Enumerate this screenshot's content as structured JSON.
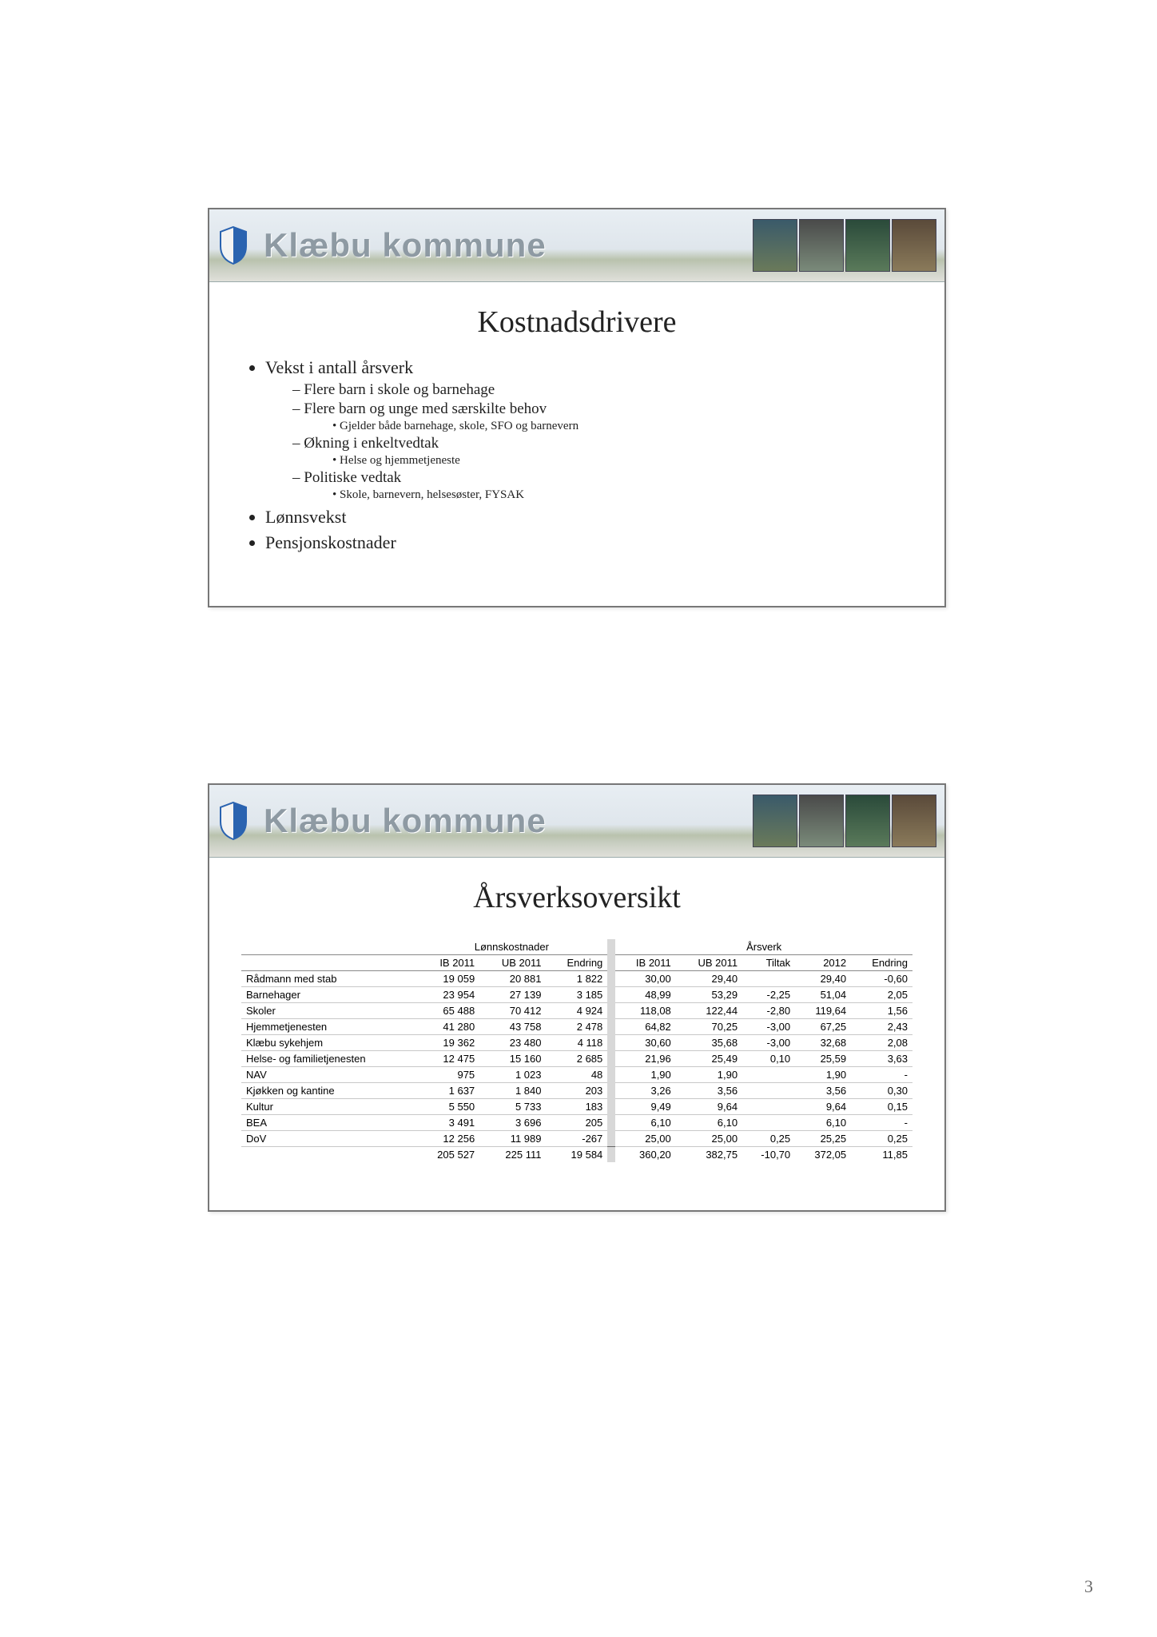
{
  "org_name": "Klæbu kommune",
  "page_number": "3",
  "colors": {
    "header_text": "#8e9aa3",
    "body_text": "#222222",
    "border": "#777777",
    "table_grid": "#c8c8c8",
    "sep_col": "#d8d8d8"
  },
  "slide1": {
    "title": "Kostnadsdrivere",
    "bullets": [
      {
        "text": "Vekst i antall årsverk",
        "sub": [
          {
            "text": "Flere barn i skole og barnehage"
          },
          {
            "text": "Flere barn og unge med særskilte behov",
            "sub": [
              "Gjelder både barnehage, skole, SFO og barnevern"
            ]
          },
          {
            "text": "Økning i enkeltvedtak",
            "sub": [
              "Helse og hjemmetjeneste"
            ]
          },
          {
            "text": "Politiske vedtak",
            "sub": [
              "Skole, barnevern, helsesøster, FYSAK"
            ]
          }
        ]
      },
      {
        "text": "Lønnsvekst"
      },
      {
        "text": "Pensjonskostnader"
      }
    ]
  },
  "slide2": {
    "title": "Årsverksoversikt",
    "table": {
      "type": "table",
      "group_headers": [
        "Lønnskostnader",
        "Årsverk"
      ],
      "columns_left": [
        "IB 2011",
        "UB 2011",
        "Endring"
      ],
      "columns_right": [
        "IB 2011",
        "UB 2011",
        "Tiltak",
        "2012",
        "Endring"
      ],
      "row_label_header": "",
      "rows": [
        {
          "label": "Rådmann med stab",
          "l": [
            "19 059",
            "20 881",
            "1 822"
          ],
          "r": [
            "30,00",
            "29,40",
            "",
            "29,40",
            "-0,60"
          ]
        },
        {
          "label": "Barnehager",
          "l": [
            "23 954",
            "27 139",
            "3 185"
          ],
          "r": [
            "48,99",
            "53,29",
            "-2,25",
            "51,04",
            "2,05"
          ]
        },
        {
          "label": "Skoler",
          "l": [
            "65 488",
            "70 412",
            "4 924"
          ],
          "r": [
            "118,08",
            "122,44",
            "-2,80",
            "119,64",
            "1,56"
          ]
        },
        {
          "label": "Hjemmetjenesten",
          "l": [
            "41 280",
            "43 758",
            "2 478"
          ],
          "r": [
            "64,82",
            "70,25",
            "-3,00",
            "67,25",
            "2,43"
          ]
        },
        {
          "label": "Klæbu sykehjem",
          "l": [
            "19 362",
            "23 480",
            "4 118"
          ],
          "r": [
            "30,60",
            "35,68",
            "-3,00",
            "32,68",
            "2,08"
          ]
        },
        {
          "label": "Helse- og familietjenesten",
          "l": [
            "12 475",
            "15 160",
            "2 685"
          ],
          "r": [
            "21,96",
            "25,49",
            "0,10",
            "25,59",
            "3,63"
          ]
        },
        {
          "label": "NAV",
          "l": [
            "975",
            "1 023",
            "48"
          ],
          "r": [
            "1,90",
            "1,90",
            "",
            "1,90",
            "-"
          ]
        },
        {
          "label": "Kjøkken og kantine",
          "l": [
            "1 637",
            "1 840",
            "203"
          ],
          "r": [
            "3,26",
            "3,56",
            "",
            "3,56",
            "0,30"
          ]
        },
        {
          "label": "Kultur",
          "l": [
            "5 550",
            "5 733",
            "183"
          ],
          "r": [
            "9,49",
            "9,64",
            "",
            "9,64",
            "0,15"
          ]
        },
        {
          "label": "BEA",
          "l": [
            "3 491",
            "3 696",
            "205"
          ],
          "r": [
            "6,10",
            "6,10",
            "",
            "6,10",
            "-"
          ]
        },
        {
          "label": "DoV",
          "l": [
            "12 256",
            "11 989",
            "-267"
          ],
          "r": [
            "25,00",
            "25,00",
            "0,25",
            "25,25",
            "0,25"
          ]
        }
      ],
      "total": {
        "label": "",
        "l": [
          "205 527",
          "225 111",
          "19 584"
        ],
        "r": [
          "360,20",
          "382,75",
          "-10,70",
          "372,05",
          "11,85"
        ]
      },
      "font_size": 13,
      "header_border_color": "#888888"
    }
  }
}
